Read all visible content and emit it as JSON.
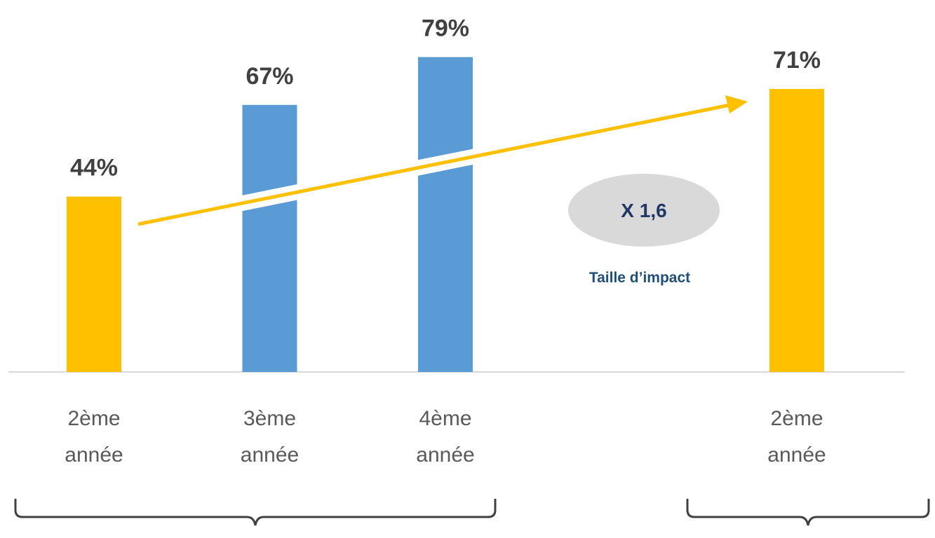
{
  "chart_data": {
    "type": "bar",
    "categories": [
      "2ème année",
      "3ème année",
      "4ème année",
      null,
      "2ème année"
    ],
    "values": [
      44,
      67,
      79,
      null,
      71
    ],
    "value_labels": [
      "44%",
      "67%",
      "79%",
      null,
      "71%"
    ],
    "colors": [
      "#ffc000",
      "#5b9bd5",
      "#5b9bd5",
      null,
      "#ffc000"
    ],
    "annotations": [
      "X 1,6",
      "Taille d’impact"
    ]
  }
}
